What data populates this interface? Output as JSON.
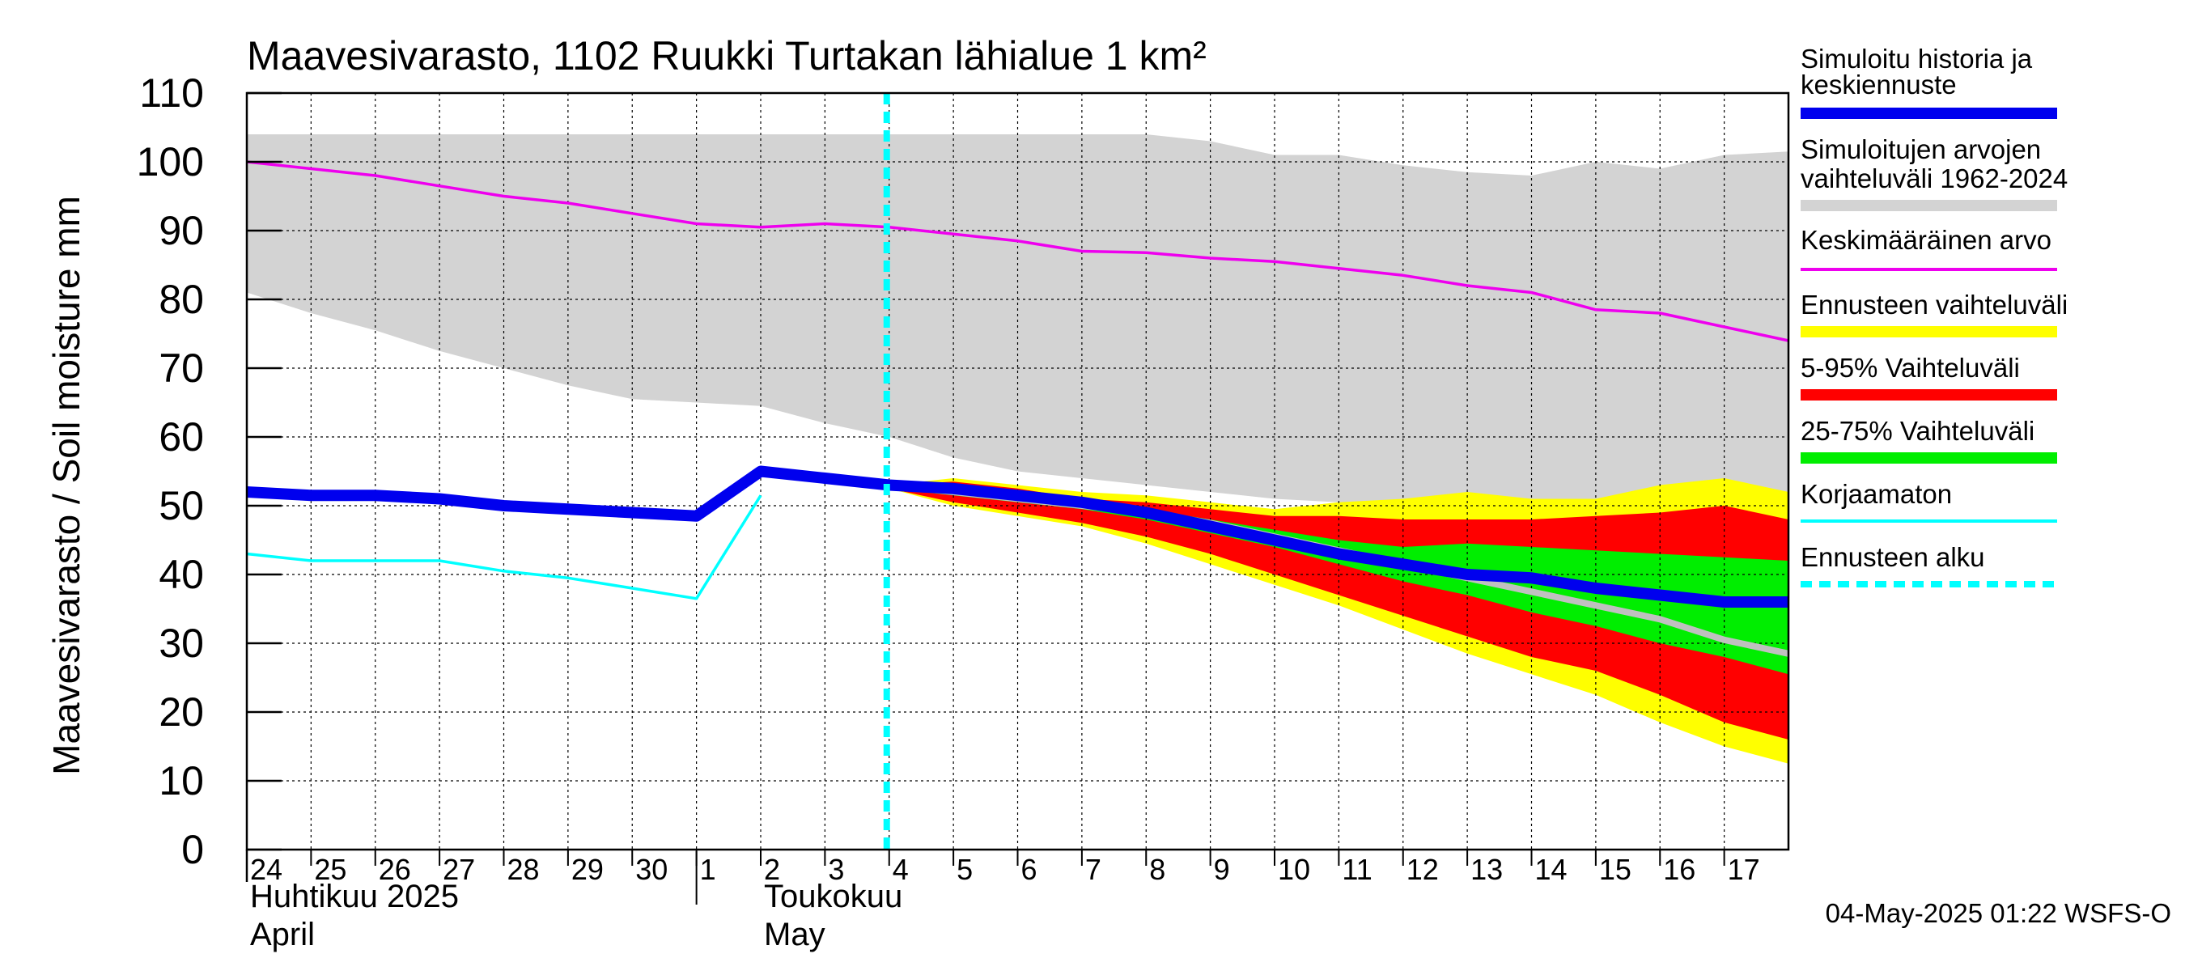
{
  "title": "Maavesivarasto, 1102 Ruukki Turtakan lähialue 1 km²",
  "ylabel": "Maavesivarasto / Soil moisture   mm",
  "footer": "04-May-2025 01:22 WSFS-O",
  "chart_data": {
    "type": "area",
    "title": "Maavesivarasto, 1102 Ruukki Turtakan lähialue 1 km²",
    "ylabel": "Maavesivarasto / Soil moisture   mm",
    "ylim": [
      0,
      110
    ],
    "yticks": [
      0,
      10,
      20,
      30,
      40,
      50,
      60,
      70,
      80,
      90,
      100,
      110
    ],
    "grid": true,
    "legend_position": "right",
    "x_days": [
      "24",
      "25",
      "26",
      "27",
      "28",
      "29",
      "30",
      "1",
      "2",
      "3",
      "4",
      "5",
      "6",
      "7",
      "8",
      "9",
      "10",
      "11",
      "12",
      "13",
      "14",
      "15",
      "16",
      "17"
    ],
    "month_labels": [
      {
        "day_index": 0,
        "line1": "Huhtikuu  2025",
        "line2": "April"
      },
      {
        "day_index": 8,
        "line1": "Toukokuu",
        "line2": "May"
      }
    ],
    "month_separator_day_index": 7,
    "forecast_start_day": 10,
    "colors": {
      "history": "#0000ee",
      "range_hist": "#d3d3d3",
      "mean": "#ee00ee",
      "yellow": "#ffff00",
      "red": "#ff0000",
      "green": "#00ee00",
      "uncorrected": "#00ffff",
      "forecast_start": "#00ffff",
      "median_forecast": "#c0c0c0"
    },
    "series": [
      {
        "name": "Simuloitujen arvojen vaihteluväli 1962-2024",
        "kind": "band",
        "x": [
          0,
          1,
          2,
          3,
          4,
          5,
          6,
          7,
          8,
          9,
          10,
          11,
          12,
          13,
          14,
          15,
          16,
          17,
          18,
          19,
          20,
          21,
          22,
          23,
          24
        ],
        "upper": [
          104,
          104,
          104,
          104,
          104,
          104,
          104,
          104,
          104,
          104,
          104,
          104,
          104,
          104,
          104,
          103,
          101,
          101,
          99.5,
          98.5,
          98,
          100,
          99,
          101,
          101.5
        ],
        "lower": [
          81,
          78,
          75.5,
          72.5,
          70,
          67.5,
          65.5,
          65,
          64.5,
          62,
          60,
          57,
          55,
          54,
          53,
          52,
          51,
          50.5,
          50.5,
          50.5,
          50,
          50,
          50,
          50,
          50
        ]
      },
      {
        "name": "Ennusteen vaihteluväli",
        "kind": "band",
        "x": [
          10,
          11,
          12,
          13,
          14,
          15,
          16,
          17,
          18,
          19,
          20,
          21,
          22,
          23,
          24
        ],
        "upper": [
          53,
          54,
          53,
          52,
          51.5,
          50.5,
          49.5,
          50.5,
          51,
          52,
          51,
          51,
          53,
          54,
          52
        ],
        "lower": [
          52.5,
          50,
          48.5,
          47,
          44.5,
          41.5,
          38.5,
          35.5,
          32,
          28.5,
          25.5,
          22.5,
          18.5,
          15,
          12.5
        ]
      },
      {
        "name": "5-95% Vaihteluväli",
        "kind": "band",
        "x": [
          10,
          11,
          12,
          13,
          14,
          15,
          16,
          17,
          18,
          19,
          20,
          21,
          22,
          23,
          24
        ],
        "upper": [
          53,
          53.5,
          52.5,
          51,
          50.5,
          49.5,
          48.5,
          48.5,
          48,
          48,
          48,
          48.5,
          49,
          50,
          48
        ],
        "lower": [
          52.5,
          50.5,
          49,
          47.5,
          45.5,
          43,
          40,
          37,
          34,
          31,
          28,
          26,
          22.5,
          18.5,
          16
        ]
      },
      {
        "name": "25-75% Vaihteluväli",
        "kind": "band",
        "x": [
          10,
          11,
          12,
          13,
          14,
          15,
          16,
          17,
          18,
          19,
          20,
          21,
          22,
          23,
          24
        ],
        "upper": [
          53,
          52.5,
          51.5,
          50.5,
          49.5,
          48,
          46.5,
          45,
          44,
          44.5,
          44,
          43.5,
          43,
          42.5,
          42
        ],
        "lower": [
          52.5,
          51.5,
          50.5,
          49.5,
          48,
          46,
          44,
          41.5,
          39,
          37,
          34.5,
          32.5,
          30,
          28,
          25.5
        ]
      },
      {
        "name": "Forecast median",
        "kind": "line",
        "x": [
          10,
          11,
          12,
          13,
          14,
          15,
          16,
          17,
          18,
          19,
          20,
          21,
          22,
          23,
          24
        ],
        "y": [
          53,
          52,
          51,
          50,
          49,
          47.5,
          45.5,
          43.5,
          41.5,
          39.5,
          37.5,
          35.5,
          33.5,
          30.5,
          28.5
        ]
      },
      {
        "name": "Keskimääräinen arvo",
        "kind": "line",
        "x": [
          0,
          1,
          2,
          3,
          4,
          5,
          6,
          7,
          8,
          9,
          10,
          11,
          12,
          13,
          14,
          15,
          16,
          17,
          18,
          19,
          20,
          21,
          22,
          23,
          24
        ],
        "y": [
          100,
          99,
          98,
          96.5,
          95,
          94,
          92.5,
          91,
          90.5,
          91,
          90.5,
          89.5,
          88.5,
          87,
          86.8,
          86,
          85.5,
          84.5,
          83.5,
          82,
          81,
          78.5,
          78,
          76,
          74
        ]
      },
      {
        "name": "Korjaamaton",
        "kind": "line",
        "x": [
          0,
          1,
          2,
          3,
          4,
          5,
          6,
          7,
          8
        ],
        "y": [
          43,
          42,
          42,
          42,
          40.5,
          39.5,
          38,
          36.5,
          51.5
        ]
      },
      {
        "name": "Simuloitu historia ja keskiennuste",
        "kind": "line",
        "x": [
          0,
          1,
          2,
          3,
          4,
          5,
          6,
          7,
          8,
          9,
          10,
          11,
          12,
          13,
          14,
          15,
          16,
          17,
          18,
          19,
          20,
          21,
          22,
          23,
          24
        ],
        "y": [
          52,
          51.5,
          51.5,
          51,
          50,
          49.5,
          49,
          48.5,
          55,
          54,
          53,
          52.5,
          51.5,
          50.5,
          49,
          47,
          45,
          43,
          41.5,
          40,
          39.5,
          38,
          37,
          36,
          36
        ]
      }
    ],
    "legend": [
      {
        "line1": "Simuloitu historia ja",
        "line2": "keskiennuste",
        "color": "#0000ee",
        "style": "thick"
      },
      {
        "line1": "Simuloitujen arvojen",
        "line2": "vaihteluväli 1962-2024",
        "color": "#d3d3d3",
        "style": "thick"
      },
      {
        "line1": "Keskimääräinen arvo",
        "line2": "",
        "color": "#ee00ee",
        "style": "thin"
      },
      {
        "line1": "Ennusteen vaihteluväli",
        "line2": "",
        "color": "#ffff00",
        "style": "thick"
      },
      {
        "line1": "5-95% Vaihteluväli",
        "line2": "",
        "color": "#ff0000",
        "style": "thick"
      },
      {
        "line1": "25-75% Vaihteluväli",
        "line2": "",
        "color": "#00ee00",
        "style": "thick"
      },
      {
        "line1": "Korjaamaton",
        "line2": "",
        "color": "#00ffff",
        "style": "thin"
      },
      {
        "line1": "Ennusteen alku",
        "line2": "",
        "color": "#00ffff",
        "style": "dashed"
      }
    ]
  }
}
